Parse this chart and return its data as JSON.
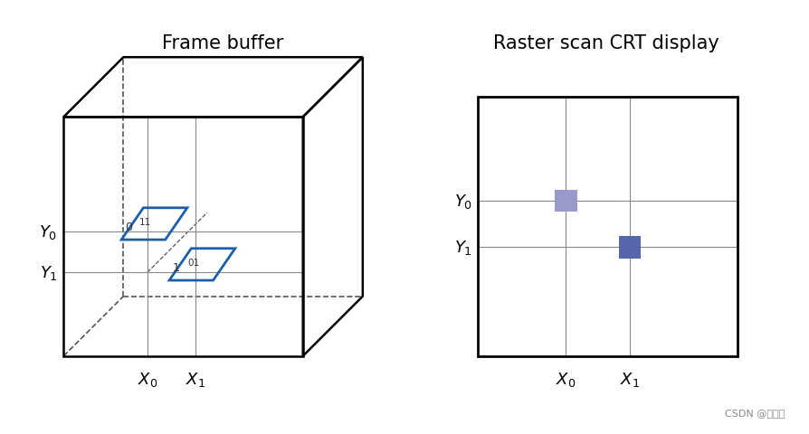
{
  "title_left": "Frame buffer",
  "title_right": "Raster scan CRT display",
  "bg_color": "#ffffff",
  "box_color": "#000000",
  "dashed_color": "#555555",
  "blue_color": "#1a5fa8",
  "pixel_light": "#9999cc",
  "pixel_dark": "#5566aa",
  "watermark": "CSDN @杨志遨",
  "font_size_title": 15,
  "font_size_label": 13,
  "font_size_data": 11,
  "font_size_watermark": 8
}
